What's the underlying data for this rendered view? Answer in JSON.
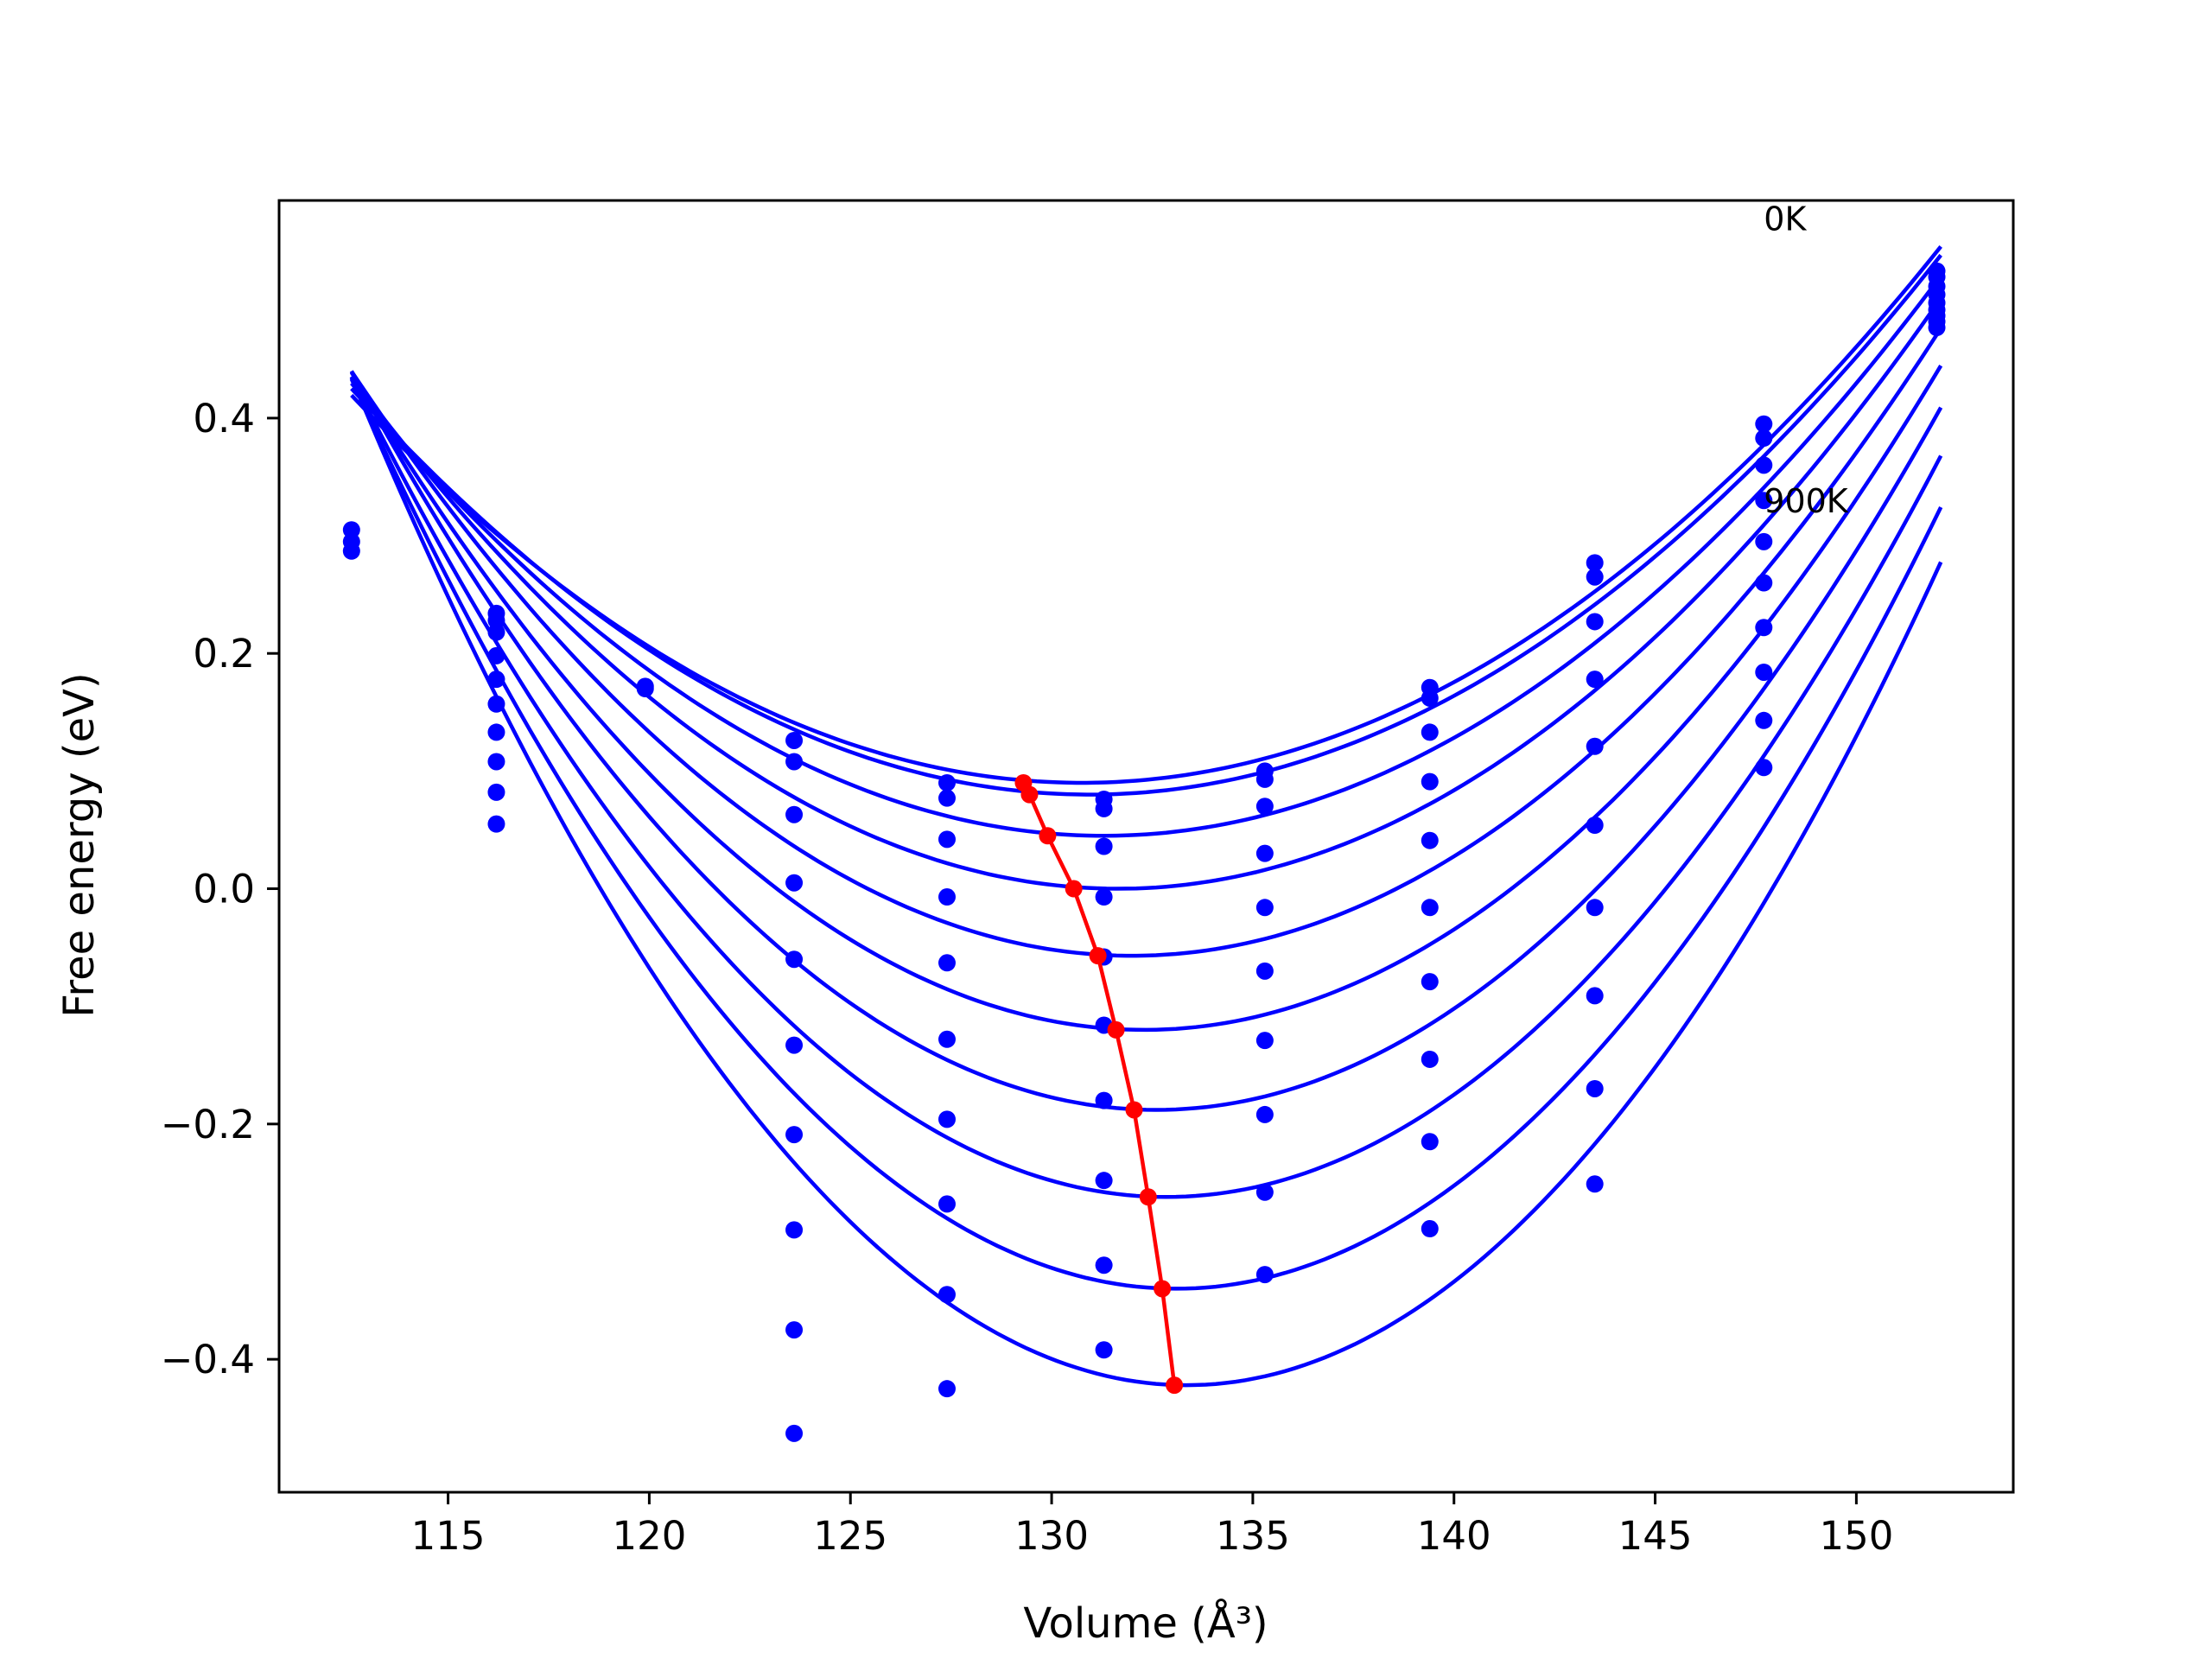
{
  "chart_data": {
    "type": "line",
    "xlabel": "Volume (Å³)",
    "ylabel": "Free energy (eV)",
    "xlim": [
      110.8,
      153.9
    ],
    "ylim": [
      -0.513,
      0.585
    ],
    "xticks": [
      115,
      120,
      125,
      130,
      135,
      140,
      145,
      150
    ],
    "yticks": [
      -0.4,
      -0.2,
      0.0,
      0.2,
      0.4
    ],
    "ytick_labels": [
      "−0.4",
      "−0.2",
      "0.0",
      "0.2",
      "0.4"
    ],
    "grid": false,
    "legend": "none",
    "annotations": [
      {
        "text": "0K",
        "x": 147.7,
        "y": 0.57
      },
      {
        "text": "900K",
        "x": 147.7,
        "y": 0.33
      }
    ],
    "fit_curves": {
      "color": "#0000ff",
      "x_range": [
        112.6,
        152.1
      ],
      "params": [
        {
          "vmin": 130.75,
          "fmin": 0.09,
          "a": 0.001
        },
        {
          "vmin": 130.95,
          "fmin": 0.08,
          "a": 0.001025
        },
        {
          "vmin": 131.3,
          "fmin": 0.045,
          "a": 0.0011
        },
        {
          "vmin": 131.65,
          "fmin": 0.0,
          "a": 0.0012
        },
        {
          "vmin": 132.0,
          "fmin": -0.057,
          "a": 0.00132
        },
        {
          "vmin": 132.3,
          "fmin": -0.12,
          "a": 0.00144
        },
        {
          "vmin": 132.6,
          "fmin": -0.188,
          "a": 0.00157
        },
        {
          "vmin": 132.85,
          "fmin": -0.262,
          "a": 0.0017
        },
        {
          "vmin": 133.1,
          "fmin": -0.34,
          "a": 0.00184
        },
        {
          "vmin": 133.35,
          "fmin": -0.422,
          "a": 0.00199
        }
      ]
    },
    "scatter_points": {
      "color": "#0000ff",
      "x": [
        112.6,
        116.2,
        119.9,
        123.6,
        127.4,
        131.3,
        135.3,
        139.4,
        143.5,
        147.7,
        152.0
      ],
      "y": [
        [
          0.305,
          0.295,
          0.287
        ],
        [
          0.234,
          0.228,
          0.218,
          0.198,
          0.178,
          0.157,
          0.133,
          0.108,
          0.082,
          0.055
        ],
        [
          0.172,
          0.17
        ],
        [
          0.126,
          0.108,
          0.063,
          0.005,
          -0.06,
          -0.133,
          -0.209,
          -0.29,
          -0.375,
          -0.463
        ],
        [
          0.09,
          0.077,
          0.042,
          -0.007,
          -0.063,
          -0.128,
          -0.196,
          -0.268,
          -0.345,
          -0.425
        ],
        [
          0.076,
          0.068,
          0.036,
          -0.007,
          -0.058,
          -0.116,
          -0.18,
          -0.248,
          -0.32,
          -0.392
        ],
        [
          0.1,
          0.093,
          0.07,
          0.03,
          -0.016,
          -0.07,
          -0.129,
          -0.192,
          -0.258,
          -0.328
        ],
        [
          0.171,
          0.162,
          0.133,
          0.091,
          0.041,
          -0.016,
          -0.079,
          -0.145,
          -0.215,
          -0.289
        ],
        [
          0.277,
          0.265,
          0.227,
          0.178,
          0.121,
          0.054,
          -0.016,
          -0.091,
          -0.17,
          -0.251
        ],
        [
          0.395,
          0.383,
          0.36,
          0.33,
          0.295,
          0.26,
          0.222,
          0.184,
          0.143,
          0.103
        ],
        [
          0.525,
          0.52,
          0.512,
          0.505,
          0.498,
          0.492,
          0.487,
          0.482,
          0.477
        ]
      ]
    },
    "minimum_path": {
      "color": "#ff0000",
      "x": [
        129.3,
        129.45,
        129.9,
        130.55,
        131.15,
        131.6,
        132.05,
        132.4,
        132.75,
        133.05
      ],
      "y": [
        0.09,
        0.08,
        0.045,
        0.0,
        -0.057,
        -0.12,
        -0.188,
        -0.262,
        -0.34,
        -0.422
      ]
    }
  }
}
